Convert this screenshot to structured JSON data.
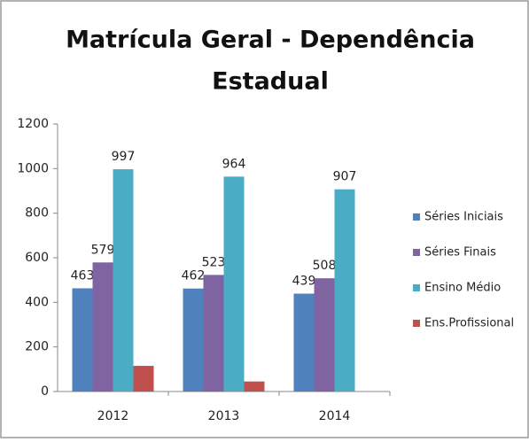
{
  "chart_data": {
    "type": "bar",
    "title": [
      "Matrícula Geral - Dependência",
      "Estadual"
    ],
    "categories": [
      "2012",
      "2013",
      "2014"
    ],
    "series": [
      {
        "name": "Séries Iniciais",
        "color": "#4f81bd",
        "values": [
          463,
          462,
          439
        ],
        "show_labels": true
      },
      {
        "name": "Séries Finais",
        "color": "#8064a2",
        "values": [
          579,
          523,
          508
        ],
        "show_labels": true
      },
      {
        "name": "Ensino Médio",
        "color": "#4bacc6",
        "values": [
          997,
          964,
          907
        ],
        "show_labels": true
      },
      {
        "name": "Ens.Profissional",
        "color": "#c0504d",
        "values": [
          115,
          45,
          0
        ],
        "show_labels": false
      }
    ],
    "ylim": [
      0,
      1200
    ],
    "yticks": [
      0,
      200,
      400,
      600,
      800,
      1000,
      1200
    ],
    "grid": false,
    "legend": "right"
  }
}
